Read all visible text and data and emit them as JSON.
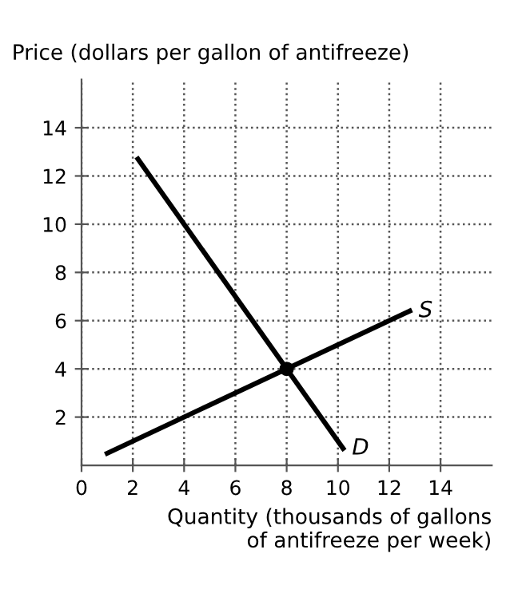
{
  "chart_data": {
    "type": "line",
    "xlabel": "Quantity (thousands of gallons\nof antifreeze per week)",
    "ylabel": "Price (dollars per gallon of antifreeze)",
    "series": [
      {
        "name": "S",
        "color": "#000000",
        "x": [
          1,
          12.8
        ],
        "values": [
          0.5,
          6.4
        ]
      },
      {
        "name": "D",
        "color": "#000000",
        "x": [
          2.2,
          10.2
        ],
        "values": [
          12.7,
          0.7
        ]
      },
      {
        "type": "scatter",
        "color": "#000000",
        "marker": "circle",
        "x": [
          8
        ],
        "values": [
          4
        ]
      }
    ],
    "xlim": [
      0,
      16
    ],
    "ylim": [
      0,
      16
    ],
    "xticks": [
      0,
      2,
      4,
      6,
      8,
      10,
      12,
      14
    ],
    "yticks": [
      2,
      4,
      6,
      8,
      10,
      12,
      14
    ],
    "grid": true,
    "marker": "none",
    "line_style": "solid",
    "legend": false
  }
}
